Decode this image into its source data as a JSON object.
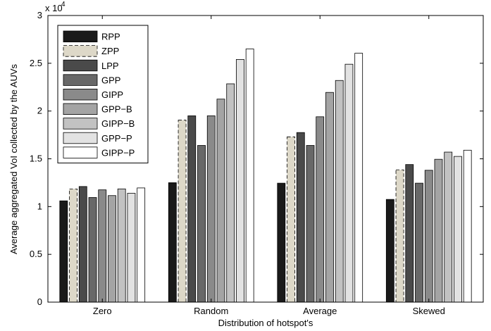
{
  "chart_data": {
    "type": "bar",
    "xlabel": "Distribution of hotspot's",
    "ylabel": "Average aggregated VoI collected by the AUVs",
    "y_multiplier": "x 10",
    "y_multiplier_exponent": "4",
    "ylim": [
      0,
      30000
    ],
    "yticks": [
      0,
      5000,
      10000,
      15000,
      20000,
      25000,
      30000
    ],
    "ytick_labels": [
      "0",
      "0.5",
      "1",
      "1.5",
      "2",
      "2.5",
      "3"
    ],
    "categories": [
      "Zero",
      "Random",
      "Average",
      "Skewed"
    ],
    "grid": false,
    "legend_position": "top-left",
    "series": [
      {
        "name": "RPP",
        "color": "#1a1a1a",
        "dashed": false,
        "values": [
          10600,
          12500,
          12450,
          10750
        ]
      },
      {
        "name": "ZPP",
        "color": "#ddd8c8",
        "dashed": true,
        "values": [
          11850,
          19050,
          17300,
          13850
        ]
      },
      {
        "name": "LPP",
        "color": "#4a4a4a",
        "dashed": false,
        "values": [
          12100,
          19500,
          17750,
          14400
        ]
      },
      {
        "name": "GPP",
        "color": "#686868",
        "dashed": false,
        "values": [
          10950,
          16400,
          16400,
          12450
        ]
      },
      {
        "name": "GIPP",
        "color": "#8a8a8a",
        "dashed": false,
        "values": [
          11750,
          19500,
          19400,
          13800
        ]
      },
      {
        "name": "GPP−B",
        "color": "#a4a4a4",
        "dashed": false,
        "values": [
          11150,
          21250,
          21950,
          14950
        ]
      },
      {
        "name": "GIPP−B",
        "color": "#c2c2c2",
        "dashed": false,
        "values": [
          11850,
          22850,
          23200,
          15700
        ]
      },
      {
        "name": "GPP−P",
        "color": "#e2e2e2",
        "dashed": false,
        "values": [
          11400,
          25400,
          24900,
          15250
        ]
      },
      {
        "name": "GIPP−P",
        "color": "#ffffff",
        "dashed": false,
        "values": [
          11950,
          26500,
          26050,
          15900
        ]
      }
    ]
  }
}
